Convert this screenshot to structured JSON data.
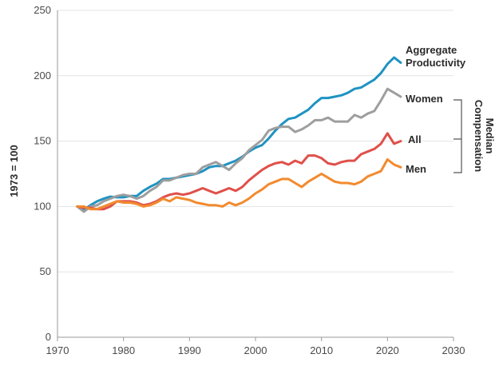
{
  "chart_data": {
    "type": "line",
    "title": "",
    "xlabel": "",
    "ylabel": "1973 = 100",
    "xlim": [
      1970,
      2030
    ],
    "ylim": [
      0,
      250
    ],
    "x_ticks": [
      1970,
      1980,
      1990,
      2000,
      2010,
      2020,
      2030
    ],
    "y_ticks": [
      0,
      50,
      100,
      150,
      200,
      250
    ],
    "grid": "horizontal",
    "group_label": "Median Compensation",
    "series": [
      {
        "name": "Aggregate Productivity",
        "label_lines": [
          "Aggregate",
          "Productivity"
        ],
        "color": "#1f93c2",
        "points": [
          [
            1973,
            100
          ],
          [
            1974,
            97.5
          ],
          [
            1975,
            101
          ],
          [
            1976,
            104
          ],
          [
            1977,
            106
          ],
          [
            1978,
            107.5
          ],
          [
            1979,
            107
          ],
          [
            1980,
            107
          ],
          [
            1981,
            108
          ],
          [
            1982,
            108
          ],
          [
            1983,
            112
          ],
          [
            1984,
            115
          ],
          [
            1985,
            117.5
          ],
          [
            1986,
            121
          ],
          [
            1987,
            121
          ],
          [
            1988,
            122
          ],
          [
            1989,
            123
          ],
          [
            1990,
            124
          ],
          [
            1991,
            125
          ],
          [
            1992,
            127
          ],
          [
            1993,
            130
          ],
          [
            1994,
            131
          ],
          [
            1995,
            131
          ],
          [
            1996,
            133
          ],
          [
            1997,
            135
          ],
          [
            1998,
            138
          ],
          [
            1999,
            142
          ],
          [
            2000,
            145
          ],
          [
            2001,
            147
          ],
          [
            2002,
            152
          ],
          [
            2003,
            158
          ],
          [
            2004,
            163
          ],
          [
            2005,
            167
          ],
          [
            2006,
            168
          ],
          [
            2007,
            171
          ],
          [
            2008,
            174
          ],
          [
            2009,
            179
          ],
          [
            2010,
            183
          ],
          [
            2011,
            183
          ],
          [
            2012,
            184
          ],
          [
            2013,
            185
          ],
          [
            2014,
            187
          ],
          [
            2015,
            190
          ],
          [
            2016,
            191
          ],
          [
            2017,
            194
          ],
          [
            2018,
            197
          ],
          [
            2019,
            202
          ],
          [
            2020,
            209
          ],
          [
            2021,
            214
          ],
          [
            2022,
            210
          ]
        ]
      },
      {
        "name": "Women",
        "color": "#9e9e9e",
        "points": [
          [
            1973,
            100
          ],
          [
            1974,
            96
          ],
          [
            1975,
            100
          ],
          [
            1976,
            101
          ],
          [
            1977,
            104
          ],
          [
            1978,
            106
          ],
          [
            1979,
            108
          ],
          [
            1980,
            109
          ],
          [
            1981,
            108
          ],
          [
            1982,
            106
          ],
          [
            1983,
            108
          ],
          [
            1984,
            112
          ],
          [
            1985,
            115
          ],
          [
            1986,
            120
          ],
          [
            1987,
            120
          ],
          [
            1988,
            122
          ],
          [
            1989,
            124
          ],
          [
            1990,
            125
          ],
          [
            1991,
            125
          ],
          [
            1992,
            130
          ],
          [
            1993,
            132
          ],
          [
            1994,
            134
          ],
          [
            1995,
            131
          ],
          [
            1996,
            128
          ],
          [
            1997,
            133
          ],
          [
            1998,
            137
          ],
          [
            1999,
            143
          ],
          [
            2000,
            147
          ],
          [
            2001,
            151
          ],
          [
            2002,
            158
          ],
          [
            2003,
            160
          ],
          [
            2004,
            161
          ],
          [
            2005,
            161
          ],
          [
            2006,
            157
          ],
          [
            2007,
            159
          ],
          [
            2008,
            162
          ],
          [
            2009,
            166
          ],
          [
            2010,
            166
          ],
          [
            2011,
            168
          ],
          [
            2012,
            165
          ],
          [
            2013,
            165
          ],
          [
            2014,
            165
          ],
          [
            2015,
            170
          ],
          [
            2016,
            168
          ],
          [
            2017,
            171
          ],
          [
            2018,
            173
          ],
          [
            2019,
            181
          ],
          [
            2020,
            190
          ],
          [
            2021,
            187
          ],
          [
            2022,
            184
          ]
        ]
      },
      {
        "name": "All",
        "color": "#e0504a",
        "points": [
          [
            1973,
            100
          ],
          [
            1974,
            99
          ],
          [
            1975,
            99
          ],
          [
            1976,
            98
          ],
          [
            1977,
            98
          ],
          [
            1978,
            100
          ],
          [
            1979,
            104
          ],
          [
            1980,
            104
          ],
          [
            1981,
            104
          ],
          [
            1982,
            103
          ],
          [
            1983,
            101
          ],
          [
            1984,
            102
          ],
          [
            1985,
            104
          ],
          [
            1986,
            107
          ],
          [
            1987,
            109
          ],
          [
            1988,
            110
          ],
          [
            1989,
            109
          ],
          [
            1990,
            110
          ],
          [
            1991,
            112
          ],
          [
            1992,
            114
          ],
          [
            1993,
            112
          ],
          [
            1994,
            110
          ],
          [
            1995,
            112
          ],
          [
            1996,
            114
          ],
          [
            1997,
            112
          ],
          [
            1998,
            115
          ],
          [
            1999,
            120
          ],
          [
            2000,
            124
          ],
          [
            2001,
            128
          ],
          [
            2002,
            131
          ],
          [
            2003,
            133
          ],
          [
            2004,
            134
          ],
          [
            2005,
            132
          ],
          [
            2006,
            135
          ],
          [
            2007,
            133
          ],
          [
            2008,
            139
          ],
          [
            2009,
            139
          ],
          [
            2010,
            137
          ],
          [
            2011,
            133
          ],
          [
            2012,
            132
          ],
          [
            2013,
            134
          ],
          [
            2014,
            135
          ],
          [
            2015,
            135
          ],
          [
            2016,
            140
          ],
          [
            2017,
            142
          ],
          [
            2018,
            144
          ],
          [
            2019,
            148
          ],
          [
            2020,
            156
          ],
          [
            2021,
            148
          ],
          [
            2022,
            150
          ]
        ]
      },
      {
        "name": "Men",
        "color": "#f28a2e",
        "points": [
          [
            1973,
            100
          ],
          [
            1974,
            100
          ],
          [
            1975,
            98
          ],
          [
            1976,
            98
          ],
          [
            1977,
            100
          ],
          [
            1978,
            102
          ],
          [
            1979,
            104
          ],
          [
            1980,
            103
          ],
          [
            1981,
            103
          ],
          [
            1982,
            102
          ],
          [
            1983,
            100
          ],
          [
            1984,
            101
          ],
          [
            1985,
            103
          ],
          [
            1986,
            106
          ],
          [
            1987,
            104
          ],
          [
            1988,
            107
          ],
          [
            1989,
            106
          ],
          [
            1990,
            105
          ],
          [
            1991,
            103
          ],
          [
            1992,
            102
          ],
          [
            1993,
            101
          ],
          [
            1994,
            101
          ],
          [
            1995,
            100
          ],
          [
            1996,
            103
          ],
          [
            1997,
            101
          ],
          [
            1998,
            103
          ],
          [
            1999,
            106
          ],
          [
            2000,
            110
          ],
          [
            2001,
            113
          ],
          [
            2002,
            117
          ],
          [
            2003,
            119
          ],
          [
            2004,
            121
          ],
          [
            2005,
            121
          ],
          [
            2006,
            118
          ],
          [
            2007,
            115
          ],
          [
            2008,
            119
          ],
          [
            2009,
            122
          ],
          [
            2010,
            125
          ],
          [
            2011,
            122
          ],
          [
            2012,
            119
          ],
          [
            2013,
            118
          ],
          [
            2014,
            118
          ],
          [
            2015,
            117
          ],
          [
            2016,
            119
          ],
          [
            2017,
            123
          ],
          [
            2018,
            125
          ],
          [
            2019,
            127
          ],
          [
            2020,
            136
          ],
          [
            2021,
            132
          ],
          [
            2022,
            130
          ]
        ]
      }
    ]
  }
}
